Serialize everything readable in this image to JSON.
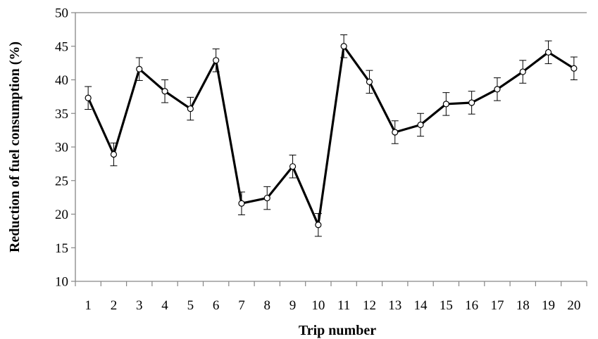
{
  "chart_data": {
    "type": "line",
    "title": "",
    "xlabel": "Trip  number",
    "ylabel": "Reduction of fuel consumption (%)",
    "ylim": [
      10,
      50
    ],
    "yticks": [
      "10",
      "15",
      "20",
      "25",
      "30",
      "35",
      "40",
      "45",
      "50"
    ],
    "categories": [
      "1",
      "2",
      "3",
      "4",
      "5",
      "6",
      "7",
      "8",
      "9",
      "10",
      "11",
      "12",
      "13",
      "14",
      "15",
      "16",
      "17",
      "18",
      "19",
      "20"
    ],
    "series": [
      {
        "values": [
          37.3,
          28.9,
          41.6,
          38.3,
          35.7,
          42.9,
          21.6,
          22.4,
          27.1,
          18.4,
          45.0,
          39.7,
          32.2,
          33.3,
          36.4,
          36.6,
          38.6,
          41.2,
          44.1,
          41.7
        ],
        "error": 1.7
      }
    ],
    "grid": false,
    "legend": "none",
    "colors": {
      "line": "#000000",
      "axis": "#868686",
      "marker_fill": "#ffffff"
    }
  }
}
